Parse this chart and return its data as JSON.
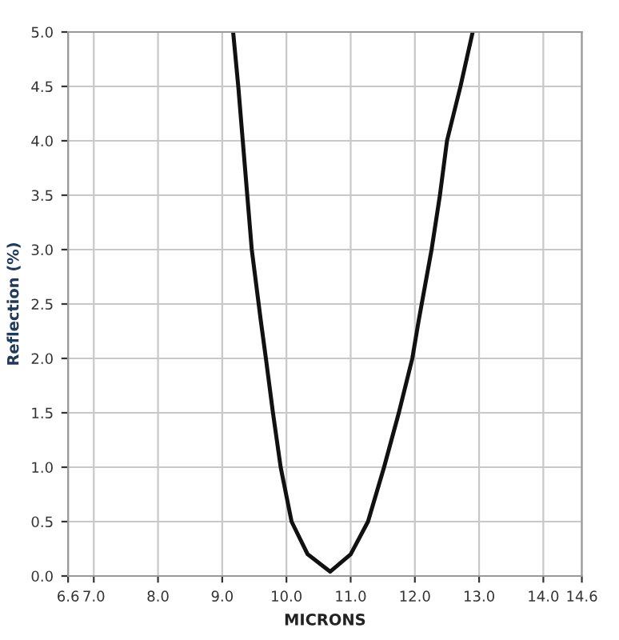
{
  "chart_data": {
    "type": "line",
    "xlabel": "MICRONS",
    "ylabel": "Reflection (%)",
    "x": [
      9.17,
      9.25,
      9.32,
      9.39,
      9.46,
      9.6,
      9.68,
      9.79,
      9.91,
      10.08,
      10.33,
      10.68,
      11.0,
      11.27,
      11.52,
      11.75,
      11.96,
      12.06,
      12.26,
      12.39,
      12.5,
      12.71,
      12.9
    ],
    "series": [
      {
        "color": "#111111",
        "values": [
          5.0,
          4.5,
          4.0,
          3.5,
          3.0,
          2.35,
          2.0,
          1.5,
          1.0,
          0.5,
          0.2,
          0.04,
          0.2,
          0.5,
          1.0,
          1.5,
          2.0,
          2.35,
          3.0,
          3.5,
          4.0,
          4.5,
          5.0
        ]
      }
    ],
    "xlim": [
      6.6,
      14.6
    ],
    "ylim": [
      0,
      5.0
    ],
    "xticks": [
      6.6,
      {
        "value": 7,
        "label": "7.0"
      },
      {
        "value": 8,
        "label": "8.0"
      },
      {
        "value": 9,
        "label": "9.0"
      },
      {
        "value": 10,
        "label": "10.0"
      },
      {
        "value": 11,
        "label": "11.0"
      },
      {
        "value": 12,
        "label": "12.0"
      },
      {
        "value": 13,
        "label": "13.0"
      },
      {
        "value": 14,
        "label": "14.0"
      },
      14.6
    ],
    "yticks": [
      {
        "value": 0,
        "label": "0.0"
      },
      0.5,
      {
        "value": 1,
        "label": "1.0"
      },
      1.5,
      {
        "value": 2,
        "label": "2.0"
      },
      2.5,
      {
        "value": 3,
        "label": "3.0"
      },
      3.5,
      {
        "value": 4,
        "label": "4.0"
      },
      4.5,
      {
        "value": 5,
        "label": "5.0"
      }
    ],
    "grid": true,
    "legend": false,
    "marker": "none",
    "line_style": "solid"
  }
}
